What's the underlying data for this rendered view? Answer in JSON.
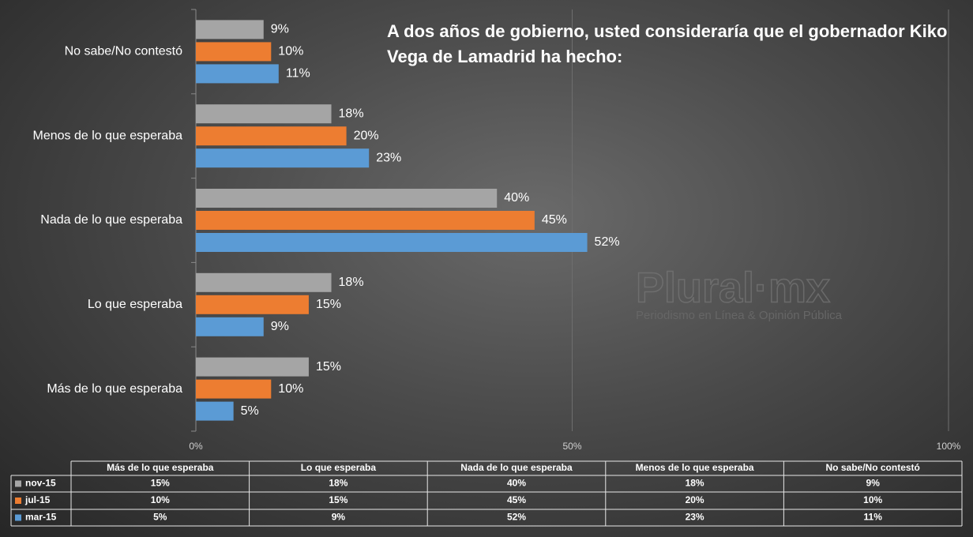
{
  "chart_data": {
    "type": "hbar",
    "title": "A dos años de gobierno, usted consideraría que el gobernador Kiko Vega de Lamadrid ha hecho:",
    "watermark_title": "Plural·mx",
    "watermark_subtitle": "Periodismo en Línea & Opinión Pública",
    "categories": [
      "Más de lo que esperaba",
      "Lo que esperaba",
      "Nada de lo que esperaba",
      "Menos de lo que esperaba",
      "No sabe/No contestó"
    ],
    "series": [
      {
        "name": "nov-15",
        "color": "#a5a5a5",
        "values": [
          15,
          18,
          40,
          18,
          9
        ],
        "value_labels": [
          "15%",
          "18%",
          "40%",
          "18%",
          "9%"
        ]
      },
      {
        "name": "jul-15",
        "color": "#ed7d31",
        "values": [
          10,
          15,
          45,
          20,
          10
        ],
        "value_labels": [
          "10%",
          "15%",
          "45%",
          "20%",
          "10%"
        ]
      },
      {
        "name": "mar-15",
        "color": "#5b9bd5",
        "values": [
          5,
          9,
          52,
          23,
          11
        ],
        "value_labels": [
          "5%",
          "9%",
          "52%",
          "23%",
          "11%"
        ]
      }
    ],
    "xlim": [
      0,
      100
    ],
    "xticks": [
      {
        "value": 0,
        "label": "0%"
      },
      {
        "value": 50,
        "label": "50%"
      },
      {
        "value": 100,
        "label": "100%"
      }
    ],
    "grid": true,
    "data_table": true
  }
}
